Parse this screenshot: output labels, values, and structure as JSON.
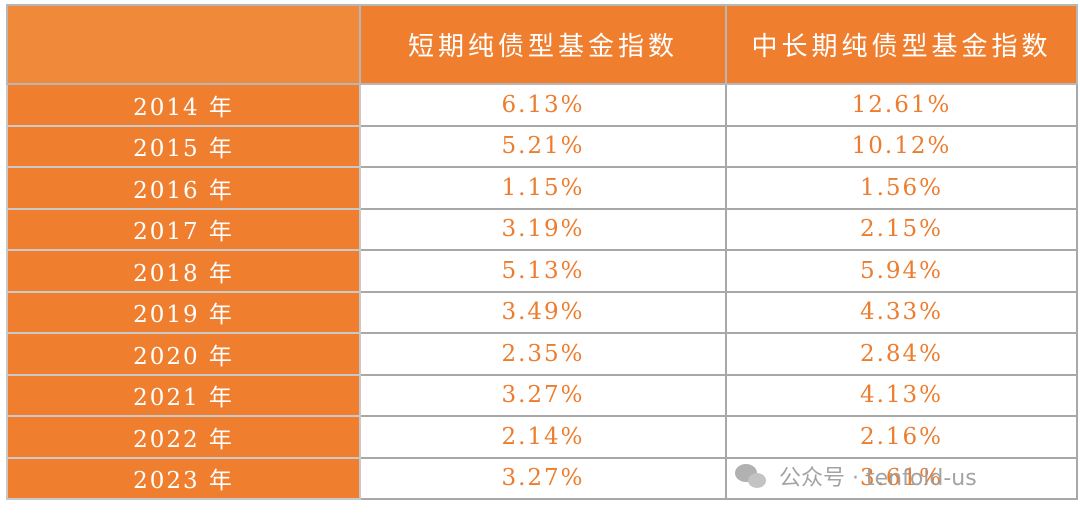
{
  "table": {
    "headers": [
      "",
      "短期纯债型基金指数",
      "中长期纯债型基金指数"
    ],
    "rows": [
      {
        "year": "2014 年",
        "short": "6.13%",
        "long": "12.61%"
      },
      {
        "year": "2015 年",
        "short": "5.21%",
        "long": "10.12%"
      },
      {
        "year": "2016 年",
        "short": "1.15%",
        "long": "1.56%"
      },
      {
        "year": "2017 年",
        "short": "3.19%",
        "long": "2.15%"
      },
      {
        "year": "2018 年",
        "short": "5.13%",
        "long": "5.94%"
      },
      {
        "year": "2019 年",
        "short": "3.49%",
        "long": "4.33%"
      },
      {
        "year": "2020 年",
        "short": "2.35%",
        "long": "2.84%"
      },
      {
        "year": "2021 年",
        "short": "3.27%",
        "long": "4.13%"
      },
      {
        "year": "2022 年",
        "short": "2.14%",
        "long": "2.16%"
      },
      {
        "year": "2023 年",
        "short": "3.27%",
        "long": "3.61%"
      }
    ]
  },
  "watermark": {
    "text": "公众号 · tenfold-us",
    "icon": "wechat-icon"
  },
  "colors": {
    "header_bg": "#ef7f2f",
    "year_bg": "#ef7f2f",
    "value_text": "#ec7d2e",
    "border": "#a8a8a8"
  }
}
